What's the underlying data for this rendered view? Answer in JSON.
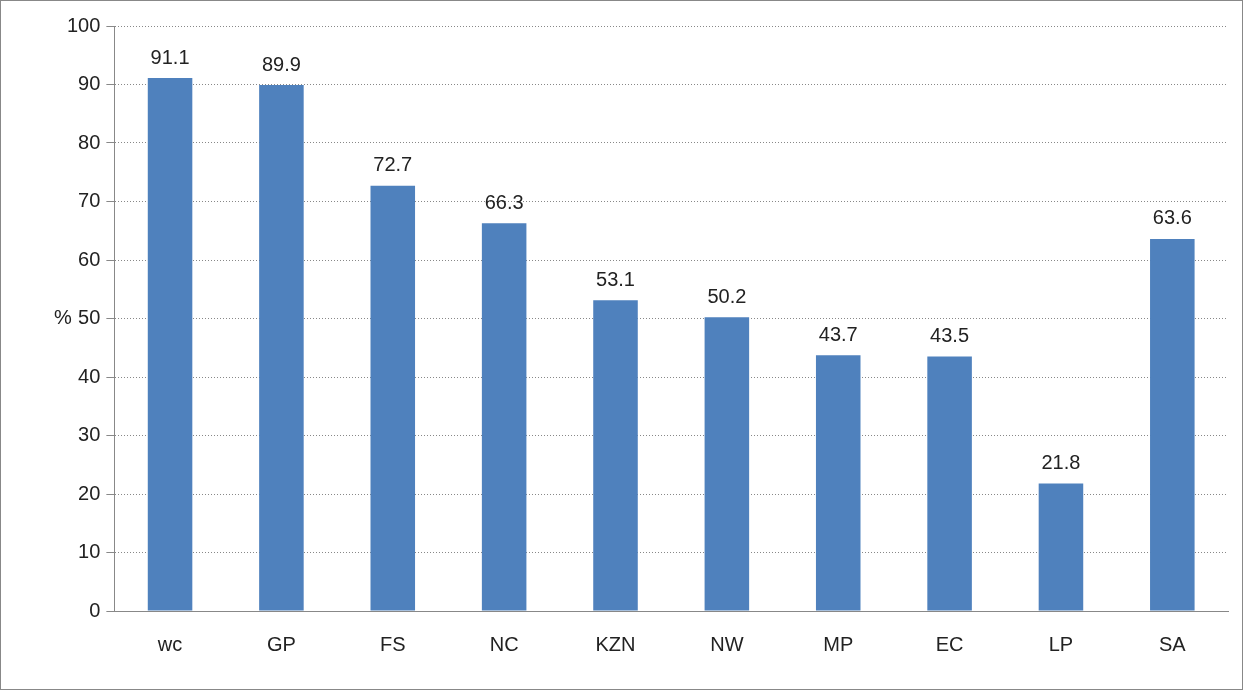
{
  "chart_data": {
    "type": "bar",
    "ylabel": "%",
    "categories": [
      "wc",
      "GP",
      "FS",
      "NC",
      "KZN",
      "NW",
      "MP",
      "EC",
      "LP",
      "SA"
    ],
    "values": [
      91.1,
      89.9,
      72.7,
      66.3,
      53.1,
      50.2,
      43.7,
      43.5,
      21.8,
      63.6
    ],
    "color": "#4f81bd",
    "ylim": [
      0,
      100
    ],
    "yticks": [
      0,
      10,
      20,
      30,
      40,
      50,
      60,
      70,
      80,
      90,
      100
    ],
    "grid": "y",
    "data_labels": true,
    "legend": false
  }
}
